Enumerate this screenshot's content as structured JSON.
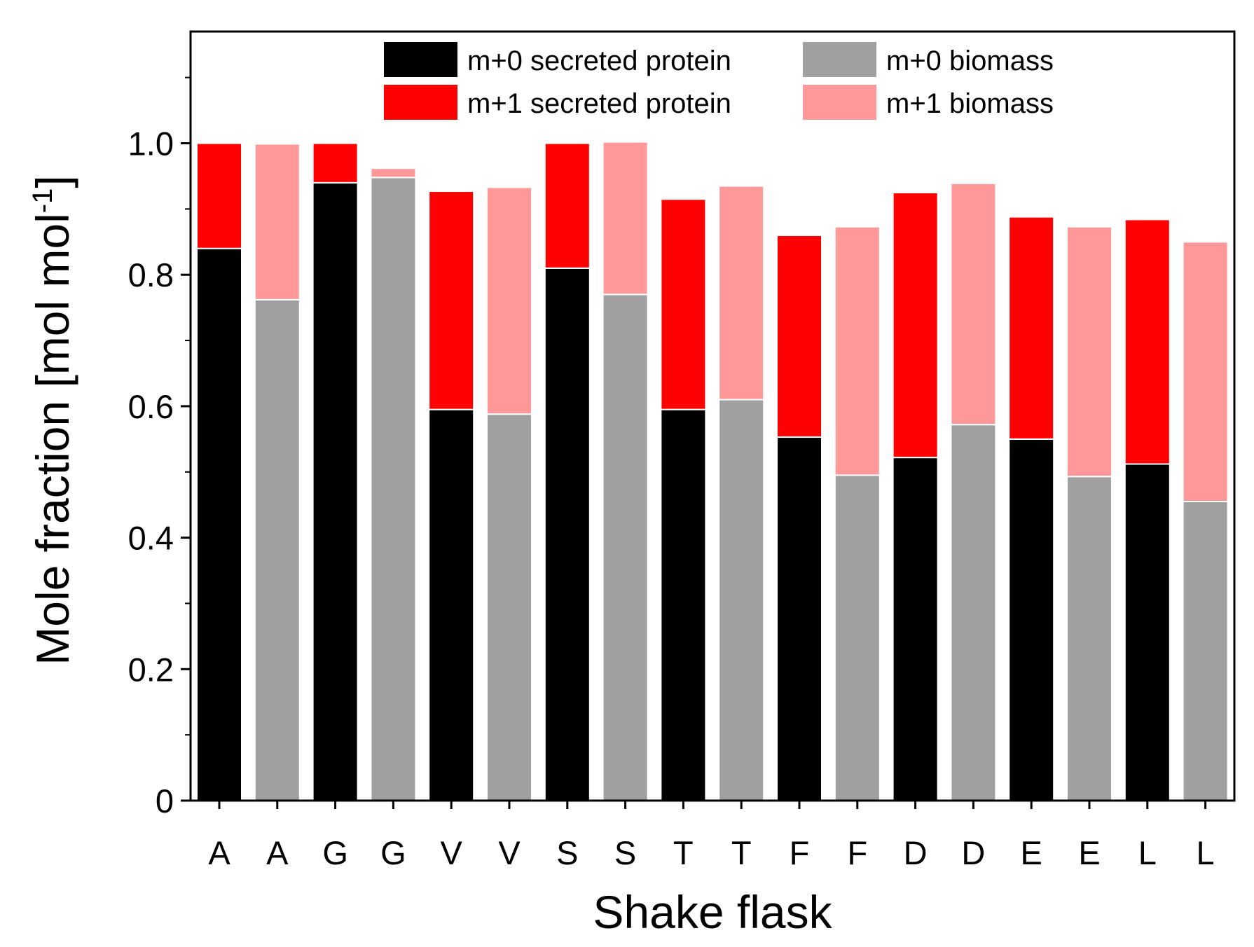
{
  "chart_data": {
    "type": "bar",
    "stacked": true,
    "title": "",
    "xlabel": "Shake flask",
    "ylabel": "Mole fraction [mol mol",
    "ylabel_superscript": "-1",
    "ylabel_close": "]",
    "ylim": [
      0,
      1.17
    ],
    "yticks": [
      0,
      0.2,
      0.4,
      0.6,
      0.8,
      1.0
    ],
    "ytick_labels": [
      "0",
      "0.2",
      "0.4",
      "0.6",
      "0.8",
      "1.0"
    ],
    "legend_position": "top-right",
    "categories": [
      "A",
      "A",
      "G",
      "G",
      "V",
      "V",
      "S",
      "S",
      "T",
      "T",
      "F",
      "F",
      "D",
      "D",
      "E",
      "E",
      "L",
      "L"
    ],
    "bar_kind": [
      "protein",
      "biomass",
      "protein",
      "biomass",
      "protein",
      "biomass",
      "protein",
      "biomass",
      "protein",
      "biomass",
      "protein",
      "biomass",
      "protein",
      "biomass",
      "protein",
      "biomass",
      "protein",
      "biomass"
    ],
    "series": [
      {
        "name": "m+0 secreted protein",
        "color": "#000000",
        "values": [
          0.84,
          null,
          0.94,
          null,
          0.595,
          null,
          0.81,
          null,
          0.595,
          null,
          0.553,
          null,
          0.522,
          null,
          0.55,
          null,
          0.512,
          null
        ]
      },
      {
        "name": "m+1 secreted protein",
        "color": "#ff0000",
        "values": [
          0.16,
          null,
          0.06,
          null,
          0.332,
          null,
          0.19,
          null,
          0.32,
          null,
          0.307,
          null,
          0.403,
          null,
          0.338,
          null,
          0.372,
          null
        ]
      },
      {
        "name": "m+0 biomass",
        "color": "#a0a0a0",
        "values": [
          null,
          0.762,
          null,
          0.948,
          null,
          0.588,
          null,
          0.77,
          null,
          0.61,
          null,
          0.495,
          null,
          0.572,
          null,
          0.493,
          null,
          0.455
        ]
      },
      {
        "name": "m+1 biomass",
        "color": "#ff9999",
        "values": [
          null,
          0.237,
          null,
          0.014,
          null,
          0.345,
          null,
          0.232,
          null,
          0.325,
          null,
          0.378,
          null,
          0.367,
          null,
          0.38,
          null,
          0.395
        ]
      }
    ],
    "legend_order": [
      0,
      2,
      1,
      3
    ]
  }
}
